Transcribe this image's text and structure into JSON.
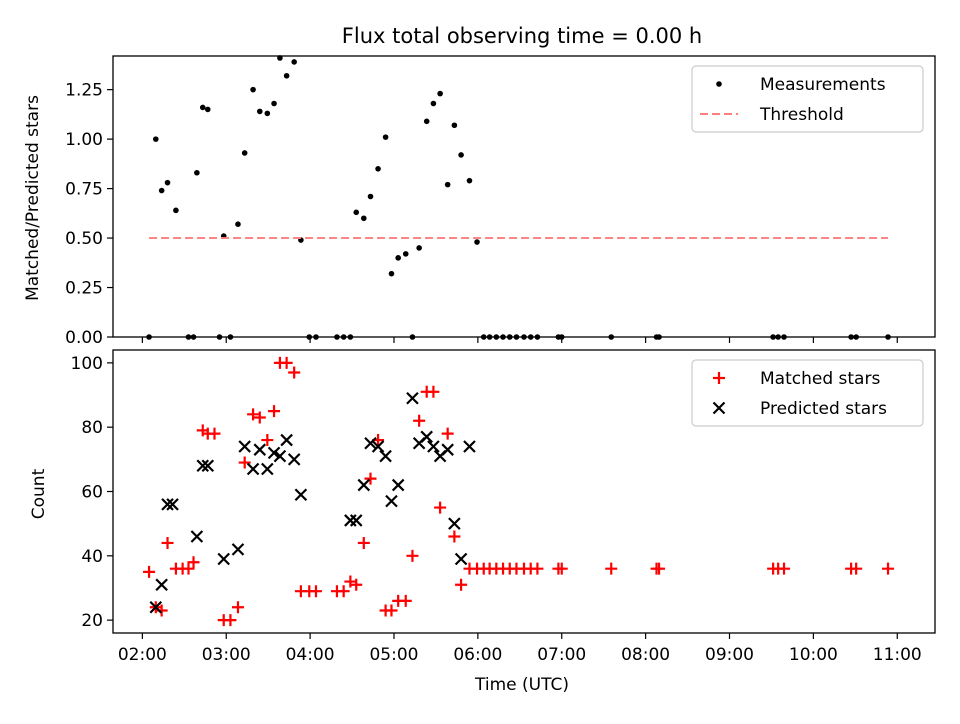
{
  "chart_data": [
    {
      "type": "scatter",
      "title": "Flux total observing time = 0.00 h",
      "xlabel": "",
      "ylabel": "Matched/Predicted stars",
      "ylim": [
        0,
        1.42
      ],
      "yticks": [
        "0.00",
        "0.25",
        "0.50",
        "0.75",
        "1.00",
        "1.25"
      ],
      "ytick_values": [
        0,
        0.25,
        0.5,
        0.75,
        1.0,
        1.25
      ],
      "xlim": [
        1.65,
        11.45
      ],
      "legend_position": "top-right",
      "series": [
        {
          "name": "Measurements",
          "marker": "dot",
          "color": "#000000",
          "x": [
            2.08,
            2.16,
            2.23,
            2.3,
            2.4,
            2.55,
            2.61,
            2.65,
            2.72,
            2.78,
            2.92,
            2.97,
            3.05,
            3.14,
            3.22,
            3.32,
            3.4,
            3.49,
            3.57,
            3.64,
            3.72,
            3.81,
            3.89,
            3.99,
            4.07,
            4.32,
            4.4,
            4.48,
            4.55,
            4.64,
            4.72,
            4.81,
            4.9,
            4.97,
            5.05,
            5.14,
            5.22,
            5.3,
            5.39,
            5.47,
            5.55,
            5.64,
            5.72,
            5.8,
            5.9,
            5.99,
            6.07,
            6.14,
            6.22,
            6.3,
            6.38,
            6.46,
            6.55,
            6.63,
            6.71,
            6.96,
            7.0,
            7.59,
            8.13,
            8.16,
            9.52,
            9.58,
            9.65,
            10.45,
            10.51,
            10.89
          ],
          "y": [
            0,
            1.0,
            0.74,
            0.78,
            0.64,
            0,
            0,
            0.83,
            1.16,
            1.15,
            0,
            0.51,
            0,
            0.57,
            0.93,
            1.25,
            1.14,
            1.13,
            1.18,
            1.41,
            1.32,
            1.39,
            0.49,
            0,
            0,
            0,
            0,
            0,
            0.63,
            0.6,
            0.71,
            0.85,
            1.01,
            0.32,
            0.4,
            0.42,
            0,
            0.45,
            1.09,
            1.18,
            1.23,
            0.77,
            1.07,
            0.92,
            0.79,
            0.48,
            0,
            0,
            0,
            0,
            0,
            0,
            0,
            0,
            0,
            0,
            0,
            0,
            0,
            0,
            0,
            0,
            0,
            0,
            0,
            0
          ]
        },
        {
          "name": "Threshold",
          "marker": "dashed-line",
          "color": "#ff7f7f",
          "x": [
            2.08,
            10.89
          ],
          "y": [
            0.5,
            0.5
          ]
        }
      ]
    },
    {
      "type": "scatter",
      "title": "",
      "xlabel": "Time (UTC)",
      "ylabel": "Count",
      "ylim": [
        16,
        104
      ],
      "yticks": [
        "20",
        "40",
        "60",
        "80",
        "100"
      ],
      "ytick_values": [
        20,
        40,
        60,
        80,
        100
      ],
      "xlim": [
        1.65,
        11.45
      ],
      "xticks": [
        "02:00",
        "03:00",
        "04:00",
        "05:00",
        "06:00",
        "07:00",
        "08:00",
        "09:00",
        "10:00",
        "11:00"
      ],
      "xtick_values": [
        2,
        3,
        4,
        5,
        6,
        7,
        8,
        9,
        10,
        11
      ],
      "legend_position": "top-right",
      "series": [
        {
          "name": "Matched stars",
          "marker": "plus",
          "color": "#ff0000",
          "x": [
            2.08,
            2.16,
            2.23,
            2.3,
            2.4,
            2.48,
            2.55,
            2.61,
            2.72,
            2.78,
            2.86,
            2.97,
            3.05,
            3.14,
            3.22,
            3.32,
            3.4,
            3.49,
            3.57,
            3.64,
            3.72,
            3.81,
            3.89,
            3.99,
            4.07,
            4.32,
            4.4,
            4.48,
            4.55,
            4.64,
            4.72,
            4.81,
            4.9,
            4.97,
            5.05,
            5.14,
            5.22,
            5.3,
            5.39,
            5.47,
            5.55,
            5.64,
            5.72,
            5.8,
            5.9,
            5.99,
            6.07,
            6.14,
            6.22,
            6.3,
            6.38,
            6.46,
            6.55,
            6.63,
            6.71,
            6.96,
            7.0,
            7.59,
            8.13,
            8.16,
            9.52,
            9.58,
            9.65,
            10.45,
            10.51,
            10.89
          ],
          "y": [
            35,
            24,
            23,
            44,
            36,
            36,
            36,
            38,
            79,
            78,
            78,
            20,
            20,
            24,
            69,
            84,
            83,
            76,
            85,
            100,
            100,
            97,
            29,
            29,
            29,
            29,
            29,
            32,
            31,
            44,
            64,
            76,
            23,
            23,
            26,
            26,
            40,
            82,
            91,
            91,
            55,
            78,
            46,
            31,
            36,
            36,
            36,
            36,
            36,
            36,
            36,
            36,
            36,
            36,
            36,
            36,
            36,
            36,
            36,
            36,
            36,
            36,
            36,
            36,
            36,
            36
          ]
        },
        {
          "name": "Predicted stars",
          "marker": "x",
          "color": "#000000",
          "x": [
            2.16,
            2.23,
            2.3,
            2.36,
            2.65,
            2.72,
            2.78,
            2.97,
            3.14,
            3.22,
            3.32,
            3.4,
            3.49,
            3.57,
            3.64,
            3.72,
            3.81,
            3.89,
            4.48,
            4.55,
            4.64,
            4.72,
            4.81,
            4.9,
            4.97,
            5.05,
            5.22,
            5.3,
            5.39,
            5.47,
            5.55,
            5.64,
            5.72,
            5.8,
            5.9
          ],
          "y": [
            24,
            31,
            56,
            56,
            46,
            68,
            68,
            39,
            42,
            74,
            67,
            73,
            67,
            72,
            71,
            76,
            70,
            59,
            51,
            51,
            62,
            75,
            74,
            71,
            57,
            62,
            89,
            75,
            77,
            74,
            71,
            73,
            50,
            39,
            74
          ]
        }
      ]
    }
  ]
}
